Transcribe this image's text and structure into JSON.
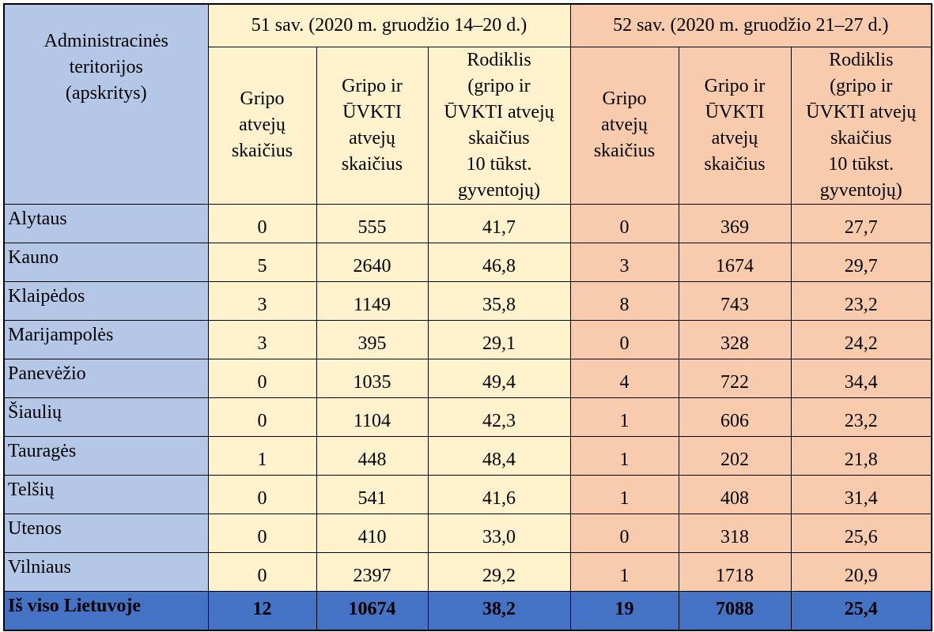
{
  "table": {
    "region_header": "Administracinės\nteritorijos\n(apskritys)",
    "week51_header": "51 sav. (2020 m. gruodžio 14–20 d.)",
    "week52_header": "52 sav. (2020 m. gruodžio 21–27 d.)",
    "col_flu": "Gripo\natvejų\nskaičius",
    "col_flu_ari": "Gripo ir\nŪVKTI\natvejų\nskaičius",
    "col_rate": "Rodiklis\n(gripo ir\nŪVKTI atvejų\nskaičius\n10 tūkst.\ngyventojų)",
    "rows": [
      {
        "region": "Alytaus",
        "w51_flu": "0",
        "w51_total": "555",
        "w51_rate": "41,7",
        "w52_flu": "0",
        "w52_total": "369",
        "w52_rate": "27,7"
      },
      {
        "region": "Kauno",
        "w51_flu": "5",
        "w51_total": "2640",
        "w51_rate": "46,8",
        "w52_flu": "3",
        "w52_total": "1674",
        "w52_rate": "29,7"
      },
      {
        "region": "Klaipėdos",
        "w51_flu": "3",
        "w51_total": "1149",
        "w51_rate": "35,8",
        "w52_flu": "8",
        "w52_total": "743",
        "w52_rate": "23,2"
      },
      {
        "region": "Marijampolės",
        "w51_flu": "3",
        "w51_total": "395",
        "w51_rate": "29,1",
        "w52_flu": "0",
        "w52_total": "328",
        "w52_rate": "24,2"
      },
      {
        "region": "Panevėžio",
        "w51_flu": "0",
        "w51_total": "1035",
        "w51_rate": "49,4",
        "w52_flu": "4",
        "w52_total": "722",
        "w52_rate": "34,4"
      },
      {
        "region": "Šiaulių",
        "w51_flu": "0",
        "w51_total": "1104",
        "w51_rate": "42,3",
        "w52_flu": "1",
        "w52_total": "606",
        "w52_rate": "23,2"
      },
      {
        "region": "Tauragės",
        "w51_flu": "1",
        "w51_total": "448",
        "w51_rate": "48,4",
        "w52_flu": "1",
        "w52_total": "202",
        "w52_rate": "21,8"
      },
      {
        "region": "Telšių",
        "w51_flu": "0",
        "w51_total": "541",
        "w51_rate": "41,6",
        "w52_flu": "1",
        "w52_total": "408",
        "w52_rate": "31,4"
      },
      {
        "region": "Utenos",
        "w51_flu": "0",
        "w51_total": "410",
        "w51_rate": "33,0",
        "w52_flu": "0",
        "w52_total": "318",
        "w52_rate": "25,6"
      },
      {
        "region": "Vilniaus",
        "w51_flu": "0",
        "w51_total": "2397",
        "w51_rate": "29,2",
        "w52_flu": "1",
        "w52_total": "1718",
        "w52_rate": "20,9"
      }
    ],
    "total": {
      "region": "Iš viso Lietuvoje",
      "w51_flu": "12",
      "w51_total": "10674",
      "w51_rate": "38,2",
      "w52_flu": "19",
      "w52_total": "7088",
      "w52_rate": "25,4"
    }
  },
  "colors": {
    "region_column": "#b4c7e7",
    "week51": "#fff2cc",
    "week52": "#f8cbad",
    "total_row": "#4472c4"
  }
}
